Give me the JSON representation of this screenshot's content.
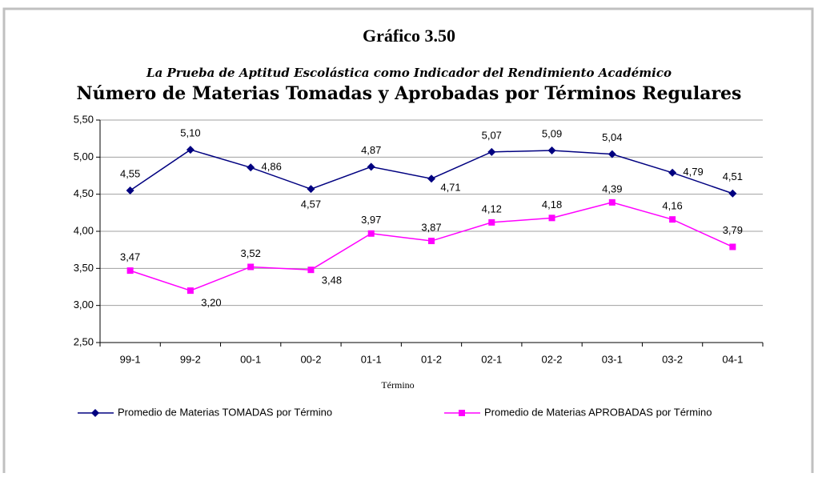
{
  "chart_data": {
    "type": "line",
    "title": "Gráfico 3.50",
    "subtitle": "La Prueba de Aptitud Escolástica como Indicador del Rendimiento Académico",
    "heading": "Número de Materias Tomadas y Aprobadas por Términos Regulares",
    "x_label": "Término",
    "categories": [
      "99-1",
      "99-2",
      "00-1",
      "00-2",
      "01-1",
      "01-2",
      "02-1",
      "02-2",
      "03-1",
      "03-2",
      "04-1"
    ],
    "series": [
      {
        "name": "Promedio de Materias TOMADAS por Término",
        "color": "#000080",
        "marker": "diamond",
        "values": [
          4.55,
          5.1,
          4.86,
          4.57,
          4.87,
          4.71,
          5.07,
          5.09,
          5.04,
          4.79,
          4.51
        ],
        "value_labels": [
          "4,55",
          "5,10",
          "4,86",
          "4,57",
          "4,87",
          "4,71",
          "5,07",
          "5,09",
          "5,04",
          "4,79",
          "4,51"
        ]
      },
      {
        "name": "Promedio de Materias APROBADAS por Término",
        "color": "#FF00FF",
        "marker": "square",
        "values": [
          3.47,
          3.2,
          3.52,
          3.48,
          3.97,
          3.87,
          4.12,
          4.18,
          4.39,
          4.16,
          3.79
        ],
        "value_labels": [
          "3,47",
          "3,20",
          "3,52",
          "3,48",
          "3,97",
          "3,87",
          "4,12",
          "4,18",
          "4,39",
          "4,16",
          "3,79"
        ]
      }
    ],
    "ylim": [
      2.5,
      5.5
    ],
    "yticks": [
      {
        "value": 2.5,
        "label": "2,50"
      },
      {
        "value": 3.0,
        "label": "3,00"
      },
      {
        "value": 3.5,
        "label": "3,50"
      },
      {
        "value": 4.0,
        "label": "4,00"
      },
      {
        "value": 4.5,
        "label": "4,50"
      },
      {
        "value": 5.0,
        "label": "5,00"
      },
      {
        "value": 5.5,
        "label": "5,50"
      }
    ],
    "grid": true,
    "legend": "bottom"
  }
}
